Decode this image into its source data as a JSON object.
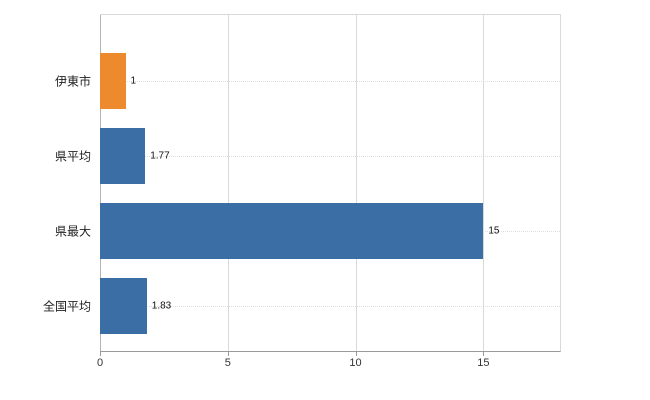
{
  "chart_data": {
    "type": "bar",
    "orientation": "horizontal",
    "title": "",
    "xlabel": "",
    "ylabel": "",
    "categories": [
      "伊東市",
      "県平均",
      "県最大",
      "全国平均"
    ],
    "values": [
      1,
      1.77,
      15,
      1.83
    ],
    "value_labels": [
      "1",
      "1.77",
      "15",
      "1.83"
    ],
    "bar_colors": [
      "#EE8A2E",
      "#3A6EA5",
      "#3A6EA5",
      "#3A6EA5"
    ],
    "xlim": [
      0,
      18
    ],
    "x_ticks": [
      0,
      5,
      10,
      15
    ],
    "x_tick_labels": [
      "0",
      "5",
      "10",
      "15"
    ],
    "grid": true,
    "legend": "none",
    "colors": {
      "highlight_bar": "#EE8A2E",
      "default_bar": "#3A6EA5",
      "axis_line": "#9a9a9a",
      "grid_line": "#d9d9d9",
      "background": "#ffffff"
    }
  }
}
